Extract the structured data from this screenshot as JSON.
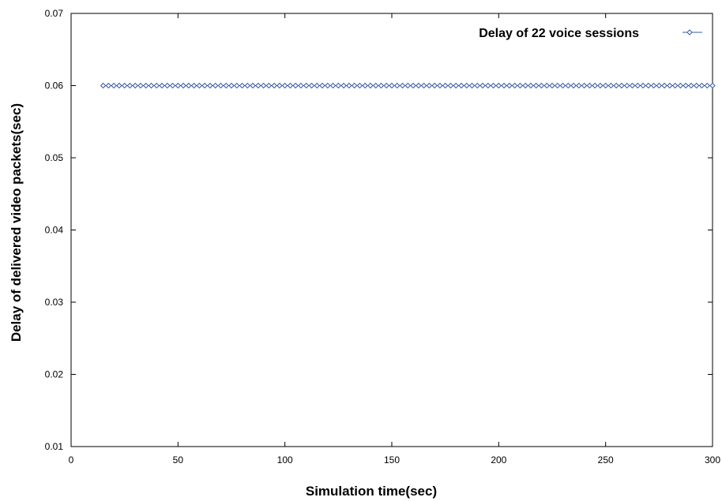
{
  "chart_data": {
    "type": "line",
    "title": "",
    "xlabel": "Simulation time(sec)",
    "ylabel": "Delay of delivered video packets(sec)",
    "xlim": [
      0,
      300
    ],
    "ylim": [
      0.01,
      0.07
    ],
    "x_ticks": [
      "0",
      "50",
      "100",
      "150",
      "200",
      "250",
      "300"
    ],
    "y_ticks": [
      "0.01",
      "0.02",
      "0.03",
      "0.04",
      "0.05",
      "0.06",
      "0.07"
    ],
    "grid": false,
    "legend_position": "top-right",
    "series": [
      {
        "name": "Delay of 22 voice sessions",
        "color": "#3a5aa8",
        "marker": "diamond-open",
        "x_start": 15,
        "x_end": 300,
        "x_step": 2.5,
        "y_constant": 0.06
      }
    ]
  }
}
